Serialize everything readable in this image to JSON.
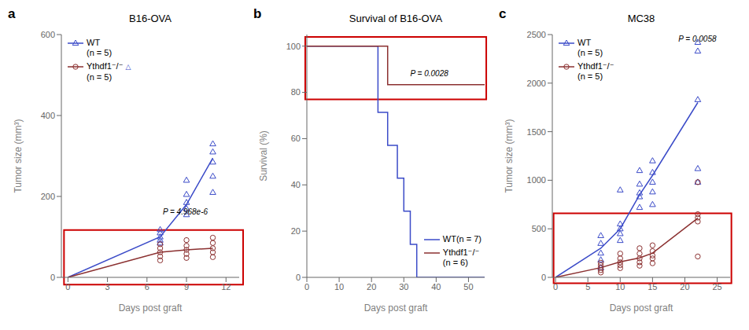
{
  "chart_data": [
    {
      "type": "line",
      "title": "B16-OVA",
      "xlabel": "Days post graft",
      "ylabel": "Tumor size (mm³)",
      "xlim": [
        -0.5,
        13
      ],
      "xticks": [
        0,
        3,
        6,
        9,
        12
      ],
      "ylim": [
        0,
        600
      ],
      "yticks": [
        0,
        200,
        400,
        600
      ],
      "grid": false,
      "legend": "upper left",
      "series": [
        {
          "name": "WT\n(n = 5)",
          "type": "line",
          "color": "#3B4BC8",
          "marker": "triangle",
          "x": [
            0,
            7,
            9,
            11
          ],
          "values": [
            0,
            100,
            180,
            295
          ]
        },
        {
          "name": "Ythdf1⁻/⁻\n(n = 5)",
          "type": "line",
          "color": "#8B3030",
          "marker": "circle",
          "x": [
            0,
            7,
            9,
            11
          ],
          "values": [
            0,
            62,
            68,
            72
          ]
        },
        {
          "type": "scatter",
          "color": "#3B4BC8",
          "marker": "triangle",
          "x": [
            7,
            7,
            7,
            7,
            7,
            9,
            9,
            9,
            9,
            9,
            11,
            11,
            11,
            11,
            11
          ],
          "values": [
            85,
            92,
            100,
            110,
            118,
            155,
            170,
            185,
            205,
            240,
            210,
            250,
            285,
            310,
            330
          ]
        },
        {
          "type": "scatter",
          "color": "#8B3030",
          "marker": "circle",
          "x": [
            7,
            7,
            7,
            7,
            7,
            9,
            9,
            9,
            9,
            9,
            11,
            11,
            11,
            11,
            11
          ],
          "values": [
            42,
            52,
            62,
            72,
            82,
            48,
            58,
            68,
            78,
            92,
            50,
            62,
            72,
            85,
            98
          ]
        }
      ],
      "annotations": [
        {
          "text": "a"
        },
        {
          "text": "△",
          "color": "#3B4BC8"
        },
        {
          "text": "P = 4.968e-6",
          "x": 7.2,
          "y": 155
        }
      ],
      "highlight": {
        "x": -0.3,
        "y": -18,
        "width": 13.6,
        "height": 135,
        "color": "#cc0000"
      }
    },
    {
      "type": "line",
      "title": "Survival of B16-OVA",
      "xlabel": "Days post graft",
      "ylabel": "Survival (%)",
      "xlim": [
        0,
        55
      ],
      "xticks": [
        0,
        10,
        20,
        30,
        40,
        50
      ],
      "ylim": [
        0,
        105
      ],
      "yticks": [
        0,
        20,
        40,
        60,
        80,
        100
      ],
      "grid": false,
      "legend": "lower right",
      "series": [
        {
          "name": "WT(n = 7)",
          "type": "step",
          "color": "#3B4BC8",
          "x": [
            0,
            22,
            22,
            25,
            25,
            28,
            28,
            30,
            30,
            32,
            32,
            34,
            34,
            55
          ],
          "values": [
            100,
            100,
            71.4,
            71.4,
            57.1,
            57.1,
            42.9,
            42.9,
            28.6,
            28.6,
            14.3,
            14.3,
            0,
            0
          ]
        },
        {
          "name": "Ythdf1⁻/⁻\n(n = 6)",
          "type": "step",
          "color": "#8B3030",
          "x": [
            0,
            25,
            25,
            55
          ],
          "values": [
            100,
            100,
            83.3,
            83.3
          ]
        }
      ],
      "annotations": [
        {
          "text": "b"
        },
        {
          "text": "P = 0.0028",
          "x": 32,
          "y": 87
        }
      ],
      "highlight": {
        "x": -0.5,
        "y": 77,
        "width": 56,
        "height": 27,
        "color": "#cc0000"
      }
    },
    {
      "type": "line",
      "title": "MC38",
      "xlabel": "Days post graft",
      "ylabel": "Tumor size (mm³)",
      "xlim": [
        -0.5,
        27
      ],
      "xticks": [
        0,
        5,
        10,
        15,
        20,
        25
      ],
      "ylim": [
        0,
        2500
      ],
      "yticks": [
        0,
        500,
        1000,
        1500,
        2000,
        2500
      ],
      "grid": false,
      "legend": "upper left",
      "series": [
        {
          "name": "WT\n(n = 5)",
          "type": "line",
          "color": "#3B4BC8",
          "marker": "triangle",
          "x": [
            0,
            7,
            10,
            13,
            15,
            22
          ],
          "values": [
            0,
            300,
            500,
            850,
            1050,
            1800
          ]
        },
        {
          "name": "Ythdf1⁻/⁻\n(n = 5)",
          "type": "line",
          "color": "#8B3030",
          "marker": "circle",
          "x": [
            0,
            7,
            10,
            13,
            15,
            22
          ],
          "values": [
            0,
            100,
            160,
            200,
            250,
            610
          ]
        },
        {
          "type": "scatter",
          "color": "#3B4BC8",
          "marker": "triangle",
          "x": [
            7,
            7,
            7,
            7,
            7,
            10,
            10,
            10,
            10,
            10,
            13,
            13,
            13,
            13,
            13,
            15,
            15,
            15,
            15,
            15,
            22,
            22,
            22,
            22,
            22
          ],
          "values": [
            100,
            180,
            250,
            350,
            430,
            380,
            450,
            500,
            550,
            900,
            720,
            830,
            870,
            960,
            1100,
            750,
            880,
            980,
            1080,
            1200,
            980,
            1120,
            1830,
            2330,
            2420
          ]
        },
        {
          "type": "scatter",
          "color": "#8B3030",
          "marker": "circle",
          "x": [
            7,
            7,
            7,
            7,
            7,
            10,
            10,
            10,
            10,
            10,
            13,
            13,
            13,
            13,
            13,
            15,
            15,
            15,
            15,
            15,
            22,
            22,
            22,
            22,
            22
          ],
          "values": [
            50,
            75,
            100,
            125,
            150,
            95,
            125,
            155,
            195,
            245,
            120,
            155,
            195,
            245,
            300,
            145,
            195,
            225,
            270,
            330,
            215,
            575,
            615,
            650,
            980
          ]
        }
      ],
      "annotations": [
        {
          "text": "c"
        },
        {
          "text": "P = 0.0058",
          "x": 19,
          "y": 2430
        }
      ],
      "highlight": {
        "x": -0.3,
        "y": -60,
        "width": 27.5,
        "height": 720,
        "color": "#cc0000"
      }
    }
  ]
}
